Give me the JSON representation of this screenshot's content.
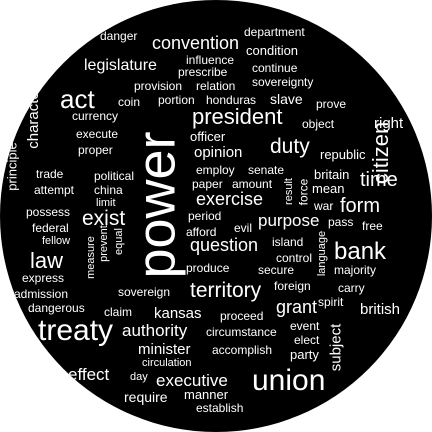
{
  "cloud": {
    "background_color": "#000000",
    "text_color": "#ffffff",
    "words": [
      "power",
      "treaty",
      "union",
      "bank",
      "citizen",
      "act",
      "president",
      "duty",
      "territory",
      "exist",
      "law",
      "form",
      "time",
      "question",
      "exercise",
      "convention",
      "legislature",
      "grant",
      "executive",
      "authority",
      "purpose",
      "minister",
      "kansas",
      "opinion",
      "character",
      "right",
      "effect",
      "british",
      "subject",
      "slave",
      "proceed",
      "republic",
      "principle",
      "currency",
      "danger",
      "department",
      "condition",
      "continue",
      "sovereignty",
      "influence",
      "prescribe",
      "provision",
      "relation",
      "portion",
      "honduras",
      "prove",
      "coin",
      "execute",
      "proper",
      "officer",
      "object",
      "political",
      "trade",
      "attempt",
      "china",
      "limit",
      "employ",
      "senate",
      "amount",
      "paper",
      "result",
      "britain",
      "mean",
      "force",
      "war",
      "pass",
      "free",
      "possess",
      "federal",
      "fellow",
      "prevent",
      "equal",
      "measure",
      "period",
      "afford",
      "evil",
      "island",
      "language",
      "majority",
      "express",
      "admission",
      "dangerous",
      "produce",
      "secure",
      "control",
      "carry",
      "foreign",
      "spirit",
      "sovereign",
      "claim",
      "circumstance",
      "event",
      "elect",
      "party",
      "accomplish",
      "circulation",
      "day",
      "manner",
      "require",
      "establish"
    ]
  }
}
